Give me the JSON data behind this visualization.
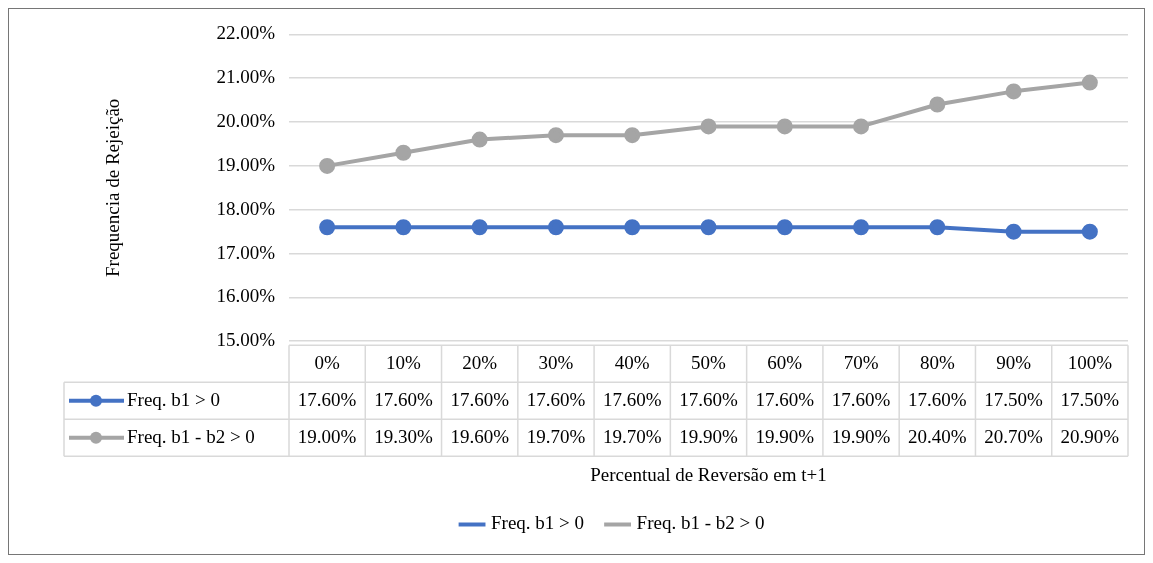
{
  "chart_data": {
    "type": "line",
    "xlabel": "Percentual de Reversão em t+1",
    "ylabel": "Frequencia de Rejeição",
    "categories": [
      "0%",
      "10%",
      "20%",
      "30%",
      "40%",
      "50%",
      "60%",
      "70%",
      "80%",
      "90%",
      "100%"
    ],
    "series": [
      {
        "name": "Freq. b1 > 0",
        "color": "#4472c4",
        "values": [
          17.6,
          17.6,
          17.6,
          17.6,
          17.6,
          17.6,
          17.6,
          17.6,
          17.6,
          17.5,
          17.5
        ],
        "value_labels": [
          "17.60%",
          "17.60%",
          "17.60%",
          "17.60%",
          "17.60%",
          "17.60%",
          "17.60%",
          "17.60%",
          "17.60%",
          "17.50%",
          "17.50%"
        ]
      },
      {
        "name": "Freq. b1 - b2 > 0",
        "color": "#a5a5a5",
        "values": [
          19.0,
          19.3,
          19.6,
          19.7,
          19.7,
          19.9,
          19.9,
          19.9,
          20.4,
          20.7,
          20.9
        ],
        "value_labels": [
          "19.00%",
          "19.30%",
          "19.60%",
          "19.70%",
          "19.70%",
          "19.90%",
          "19.90%",
          "19.90%",
          "20.40%",
          "20.70%",
          "20.90%"
        ]
      }
    ],
    "ylim": [
      15,
      22
    ],
    "yticks": [
      {
        "value": 15,
        "label": "15.00%"
      },
      {
        "value": 16,
        "label": "16.00%"
      },
      {
        "value": 17,
        "label": "17.00%"
      },
      {
        "value": 18,
        "label": "18.00%"
      },
      {
        "value": 19,
        "label": "19.00%"
      },
      {
        "value": 20,
        "label": "20.00%"
      },
      {
        "value": 21,
        "label": "21.00%"
      },
      {
        "value": 22,
        "label": "22.00%"
      }
    ],
    "grid": "y",
    "legend": "bottom",
    "marker": "circle",
    "line_style": "solid",
    "data_labels": true
  }
}
